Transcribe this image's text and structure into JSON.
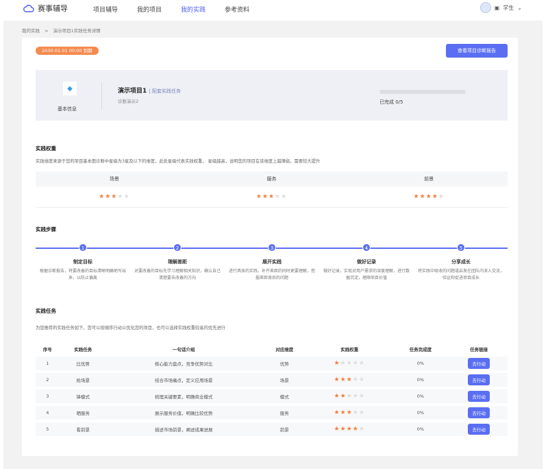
{
  "nav": {
    "brand": "赛事辅导",
    "items": [
      {
        "label": "项目辅导",
        "active": false
      },
      {
        "label": "我的项目",
        "active": false
      },
      {
        "label": "我的实践",
        "active": true
      },
      {
        "label": "参考资料",
        "active": false
      }
    ],
    "user_role": "学生",
    "accent": "#5a6ef2"
  },
  "breadcrumb": {
    "root": "我的实践",
    "separator": ">",
    "current": "演示项目1实践任务详情"
  },
  "deadline_badge": "2030-01-01 00:00 到期",
  "report_button": "查看项目诊断报告",
  "project": {
    "basic_info_label": "基本信息",
    "name": "演示项目1",
    "tag": "| 配套实践任务",
    "subtitle": "诊断演示2",
    "progress": 0,
    "completed_text": "已完成 0/5"
  },
  "weights": {
    "title": "实践权重",
    "description": "实践维度来源于您的项目基本面诊断中星级为3星及以下的维度，此处星级代表实践权重， 星级越高，说明您的项目在该维度上越薄弱，需要较大提升",
    "items": [
      {
        "label": "场景",
        "stars": 3
      },
      {
        "label": "服务",
        "stars": 3
      },
      {
        "label": "前景",
        "stars": 4
      }
    ]
  },
  "steps": {
    "title": "实践步骤",
    "items": [
      {
        "num": "1",
        "title": "制定目标",
        "desc": "根据诊断报告，将要改善的目标清晰明确地写出来，以防止偏离"
      },
      {
        "num": "2",
        "title": "理解差距",
        "desc": "对要改善的目标先学习理解相关知识，确认自己清楚要去改善的方向"
      },
      {
        "num": "3",
        "title": "展开实践",
        "desc": "进行具体的实践，补齐差距的同时更要理解，挖掘差距背后的问题"
      },
      {
        "num": "4",
        "title": "做好记录",
        "desc": "做好记录，实现对用户需求的深度理解，进行数据沉淀，理顺项目价值"
      },
      {
        "num": "5",
        "title": "分享成长",
        "desc": "将实践中吸收的问题或启发在团队内深入交流，验证和促进项目成长"
      }
    ]
  },
  "tasks": {
    "title": "实践任务",
    "description": "为您推荐的实践任务如下，您可以按顺序行动以优化您的项目，也可以选择实践权重较高的优先进行",
    "columns": [
      "序号",
      "实践任务",
      "一句话介绍",
      "对应维度",
      "实践权重",
      "任务完成度",
      "任务链接"
    ],
    "rows": [
      {
        "no": "1",
        "task": "比优势",
        "intro": "核心能力盘点，竞争优势对比",
        "dim": "优势",
        "stars": 1,
        "done": "0%",
        "action": "去行动"
      },
      {
        "no": "2",
        "task": "抢场景",
        "intro": "结合市场痛点，定义应用场景",
        "dim": "场景",
        "stars": 3,
        "done": "0%",
        "action": "去行动"
      },
      {
        "no": "3",
        "task": "锋模式",
        "intro": "梳理关键要素，明确商业模式",
        "dim": "模式",
        "stars": 2,
        "done": "0%",
        "action": "去行动"
      },
      {
        "no": "4",
        "task": "晒服务",
        "intro": "展示服务价值，明确比较优势",
        "dim": "服务",
        "stars": 3,
        "done": "0%",
        "action": "去行动"
      },
      {
        "no": "5",
        "task": "看前景",
        "intro": "描述市场前景，阐述成果进展",
        "dim": "前景",
        "stars": 4,
        "done": "0%",
        "action": "去行动"
      }
    ]
  }
}
